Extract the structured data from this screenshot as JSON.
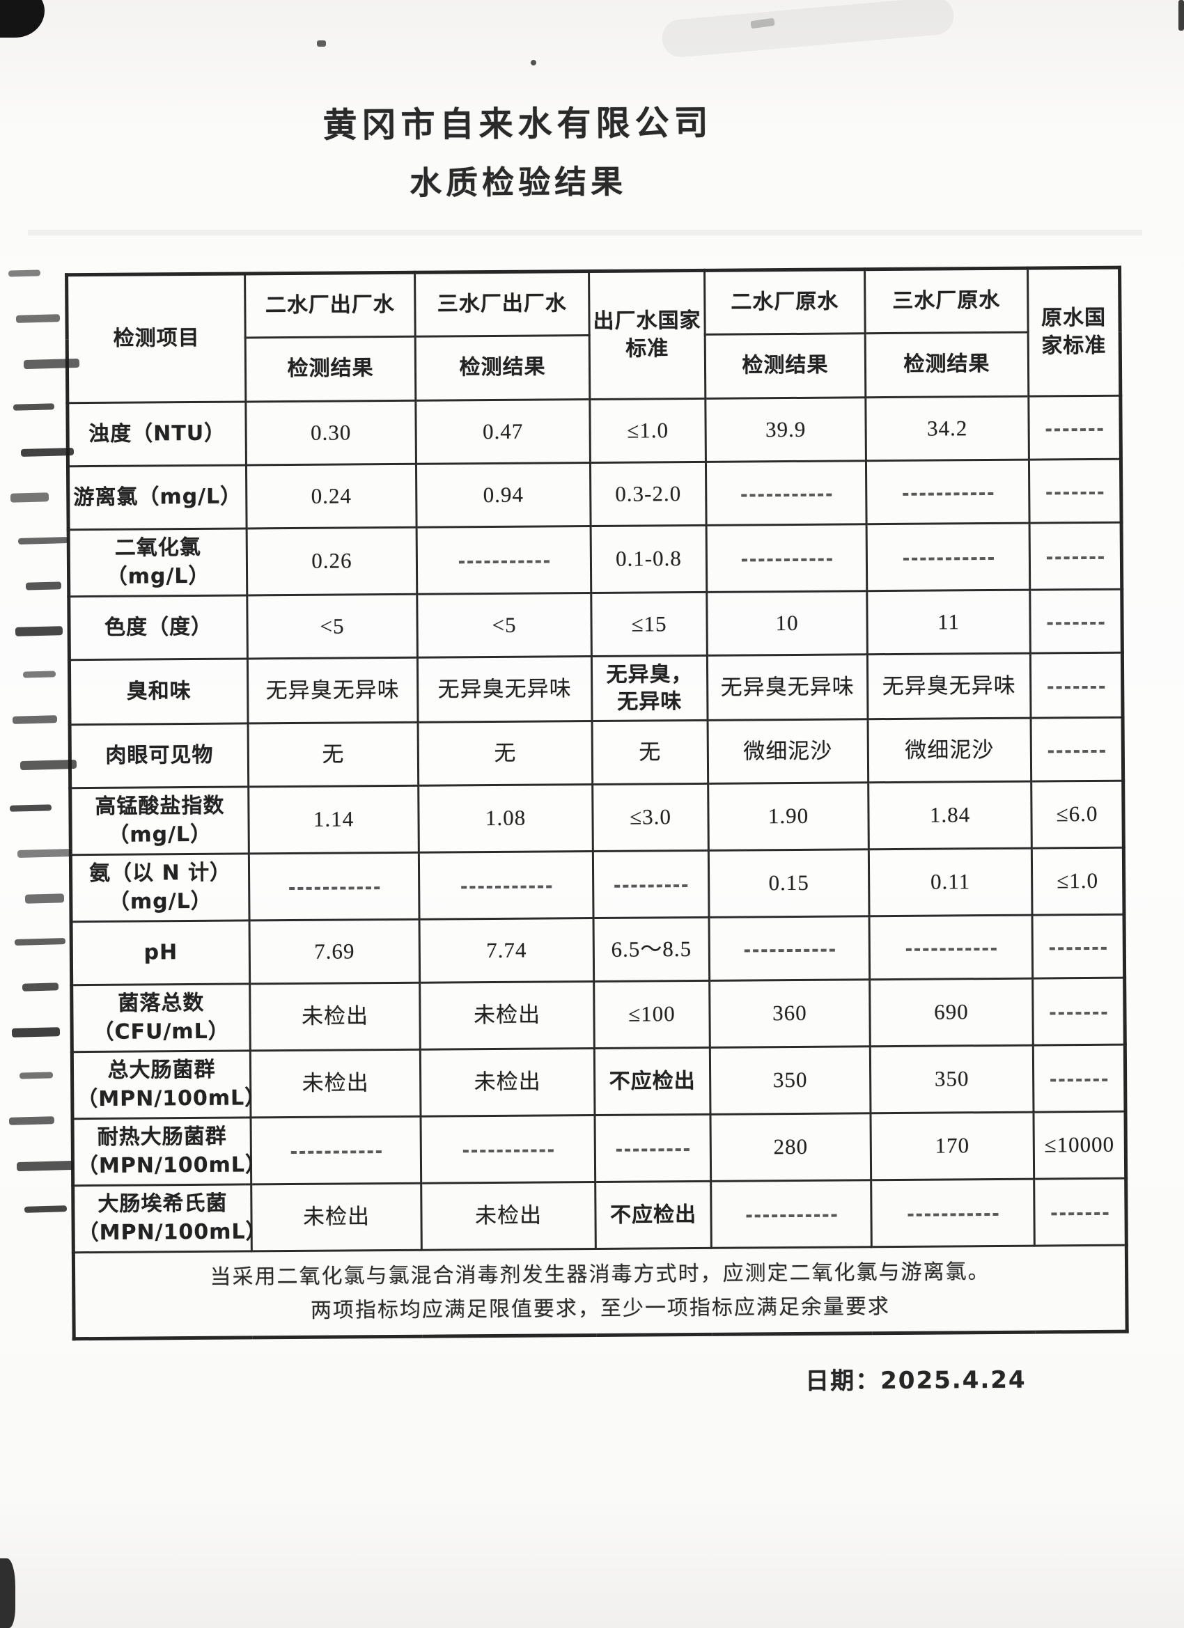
{
  "title": "黄冈市自来水有限公司",
  "subtitle": "水质检验结果",
  "table": {
    "header": {
      "item": "检测项目",
      "out2": "二水厂出厂水",
      "out3": "三水厂出厂水",
      "out_std": "出厂水国家标准",
      "raw2": "二水厂原水",
      "raw3": "三水厂原水",
      "raw_std": "原水国家标准",
      "result": "检测结果"
    },
    "rows": [
      {
        "item": "浊度（NTU）",
        "cells": [
          "0.30",
          "0.47",
          "≤1.0",
          "39.9",
          "34.2",
          "———"
        ],
        "bold_cells": []
      },
      {
        "item": "游离氯（mg/L）",
        "cells": [
          "0.24",
          "0.94",
          "0.3-2.0",
          "———",
          "———",
          "———"
        ],
        "bold_cells": []
      },
      {
        "item": "二氧化氯\n（mg/L）",
        "cells": [
          "0.26",
          "———",
          "0.1-0.8",
          "———",
          "———",
          "———"
        ],
        "bold_cells": []
      },
      {
        "item": "色度（度）",
        "cells": [
          "<5",
          "<5",
          "≤15",
          "10",
          "11",
          "———"
        ],
        "bold_cells": []
      },
      {
        "item": "臭和味",
        "cells": [
          "无异臭无异味",
          "无异臭无异味",
          "无异臭，\n无异味",
          "无异臭无异味",
          "无异臭无异味",
          "———"
        ],
        "bold_cells": [
          2
        ]
      },
      {
        "item": "肉眼可见物",
        "cells": [
          "无",
          "无",
          "无",
          "微细泥沙",
          "微细泥沙",
          "———"
        ],
        "bold_cells": []
      },
      {
        "item": "高锰酸盐指数\n（mg/L）",
        "cells": [
          "1.14",
          "1.08",
          "≤3.0",
          "1.90",
          "1.84",
          "≤6.0"
        ],
        "bold_cells": []
      },
      {
        "item": "氨（以 N 计）\n（mg/L）",
        "cells": [
          "———",
          "———",
          "———",
          "0.15",
          "0.11",
          "≤1.0"
        ],
        "bold_cells": []
      },
      {
        "item": "pH",
        "cells": [
          "7.69",
          "7.74",
          "6.5～8.5",
          "———",
          "———",
          "———"
        ],
        "bold_cells": []
      },
      {
        "item": "菌落总数\n（CFU/mL）",
        "cells": [
          "未检出",
          "未检出",
          "≤100",
          "360",
          "690",
          "———"
        ],
        "bold_cells": []
      },
      {
        "item": "总大肠菌群\n（MPN/100mL）",
        "cells": [
          "未检出",
          "未检出",
          "不应检出",
          "350",
          "350",
          "———"
        ],
        "bold_cells": [
          2
        ]
      },
      {
        "item": "耐热大肠菌群\n（MPN/100mL）",
        "cells": [
          "———",
          "———",
          "———",
          "280",
          "170",
          "≤10000"
        ],
        "bold_cells": []
      },
      {
        "item": "大肠埃希氏菌\n（MPN/100mL）",
        "cells": [
          "未检出",
          "未检出",
          "不应检出",
          "———",
          "———",
          "———"
        ],
        "bold_cells": [
          2
        ]
      }
    ],
    "note_line1": "当采用二氧化氯与氯混合消毒剂发生器消毒方式时，应测定二氧化氯与游离氯。",
    "note_line2": "两项指标均应满足限值要求，至少一项指标应满足余量要求"
  },
  "date_label": "日期：2025.4.24"
}
